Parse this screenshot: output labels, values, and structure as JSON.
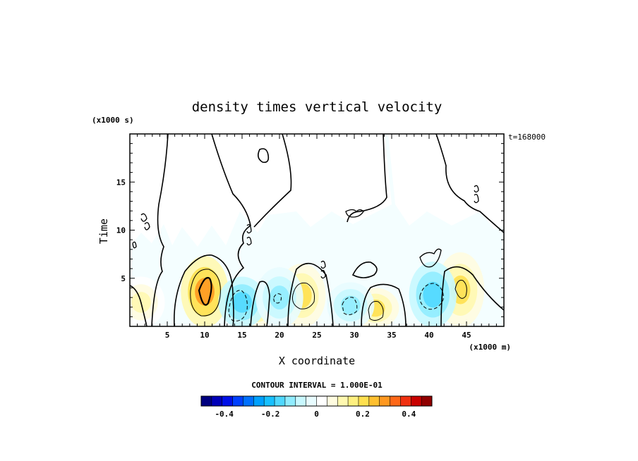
{
  "chart_data": {
    "type": "heatmap",
    "title": "density times vertical velocity",
    "xlabel": "X coordinate",
    "ylabel": "Time",
    "x_unit": "(x1000 m)",
    "y_unit": "(x1000 s)",
    "time_label": "t=168000",
    "xlim": [
      0,
      50
    ],
    "ylim": [
      0,
      20
    ],
    "x_ticks": [
      5,
      10,
      15,
      20,
      25,
      30,
      35,
      40,
      45
    ],
    "y_ticks": [
      5,
      10,
      15
    ],
    "contour_interval_label": "CONTOUR INTERVAL = 1.000E-01",
    "colorbar": {
      "range": [
        -0.5,
        0.5
      ],
      "ticks": [
        -0.4,
        -0.2,
        0,
        0.2,
        0.4
      ],
      "tick_labels": [
        "-0.4",
        "-0.2",
        "0",
        "0.2",
        "0.4"
      ],
      "colors": [
        "#00007f",
        "#0000b8",
        "#0010e8",
        "#0040ff",
        "#0070ff",
        "#00a0ff",
        "#18c0ff",
        "#50d8ff",
        "#90ecff",
        "#c8f8ff",
        "#e8fcff",
        "#ffffff",
        "#fffce0",
        "#fff8b0",
        "#fff080",
        "#ffe050",
        "#ffc030",
        "#ff9820",
        "#ff6818",
        "#f03010",
        "#c80000",
        "#900000"
      ]
    },
    "features": [
      {
        "x": 10,
        "y": 3.6,
        "value": 0.3,
        "sign": "positive"
      },
      {
        "x": 23,
        "y": 3.2,
        "value": 0.2,
        "sign": "positive"
      },
      {
        "x": 32.8,
        "y": 1.9,
        "value": 0.2,
        "sign": "positive"
      },
      {
        "x": 44.2,
        "y": 3.8,
        "value": 0.2,
        "sign": "positive"
      },
      {
        "x": 1.5,
        "y": 2.5,
        "value": 0.1,
        "sign": "positive"
      },
      {
        "x": 17,
        "y": 1.2,
        "value": 0.1,
        "sign": "positive"
      },
      {
        "x": 15,
        "y": 2.5,
        "value": -0.15,
        "sign": "negative"
      },
      {
        "x": 29.5,
        "y": 2.2,
        "value": -0.12,
        "sign": "negative"
      },
      {
        "x": 40.5,
        "y": 3.3,
        "value": -0.15,
        "sign": "negative"
      },
      {
        "x": 20,
        "y": 3.0,
        "value": -0.1,
        "sign": "negative"
      }
    ]
  }
}
